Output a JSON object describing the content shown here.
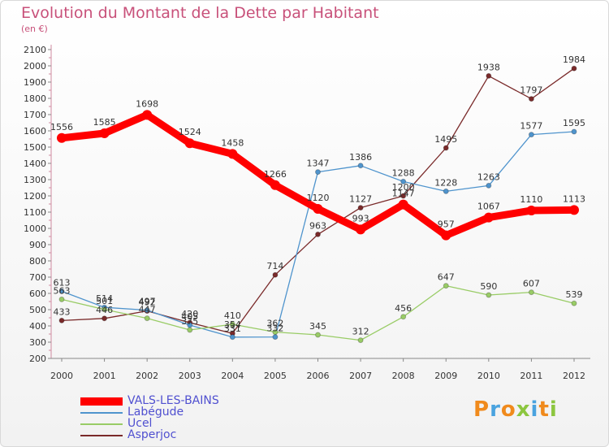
{
  "header": {
    "title": "Evolution du Montant de la Dette par Habitant",
    "subtitle": "(en €)"
  },
  "logo": {
    "text": "Proxiti",
    "letters": [
      {
        "ch": "P",
        "color": "#f08a1c"
      },
      {
        "ch": "r",
        "color": "#4aa3df"
      },
      {
        "ch": "o",
        "color": "#f08a1c"
      },
      {
        "ch": "x",
        "color": "#8cc63f"
      },
      {
        "ch": "i",
        "color": "#4aa3df"
      },
      {
        "ch": "t",
        "color": "#f08a1c"
      },
      {
        "ch": "i",
        "color": "#8cc63f"
      }
    ]
  },
  "chart_data": {
    "type": "line",
    "title": "Evolution du Montant de la Dette par Habitant",
    "subtitle": "(en €)",
    "x": [
      "2000",
      "2001",
      "2002",
      "2003",
      "2004",
      "2005",
      "2006",
      "2007",
      "2008",
      "2009",
      "2010",
      "2011",
      "2012"
    ],
    "ylim": [
      200,
      2100
    ],
    "yticks": [
      200,
      300,
      400,
      500,
      600,
      700,
      800,
      900,
      1000,
      1100,
      1200,
      1300,
      1400,
      1500,
      1600,
      1700,
      1800,
      1900,
      2000,
      2100
    ],
    "grid": false,
    "legend_position": "bottom-left",
    "series": [
      {
        "name": "VALS-LES-BAINS",
        "color": "#ff0000",
        "values": [
          1556,
          1585,
          1698,
          1524,
          1458,
          1266,
          1120,
          993,
          1147,
          957,
          1067,
          1110,
          1113
        ]
      },
      {
        "name": "Labégude",
        "color": "#4f94cd",
        "values": [
          613,
          514,
          497,
          405,
          331,
          332,
          1347,
          1386,
          1288,
          1228,
          1263,
          1577,
          1595
        ]
      },
      {
        "name": "Ucel",
        "color": "#99cc66",
        "values": [
          563,
          501,
          447,
          375,
          410,
          362,
          345,
          312,
          456,
          647,
          590,
          607,
          539
        ]
      },
      {
        "name": "Asperjoc",
        "color": "#7a2a2a",
        "values": [
          433,
          446,
          492,
          420,
          354,
          714,
          963,
          1127,
          1200,
          1495,
          1938,
          1797,
          1984
        ]
      }
    ]
  }
}
